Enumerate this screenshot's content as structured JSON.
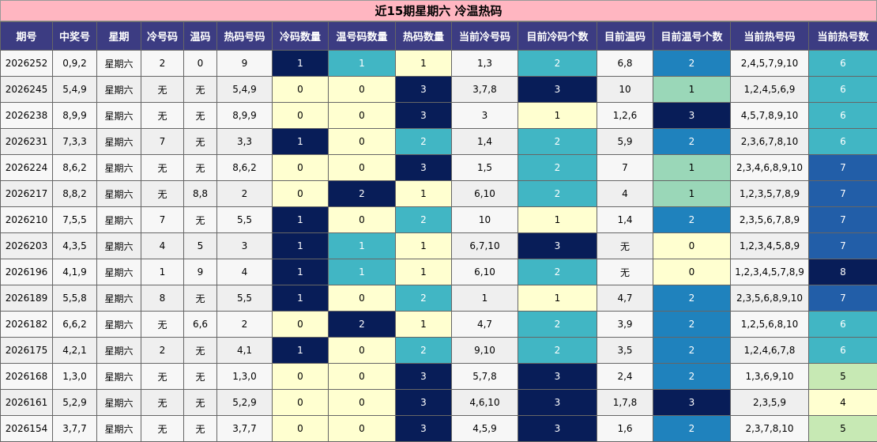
{
  "title": "近15期星期六 冷温热码",
  "headers": [
    "期号",
    "中奖号",
    "星期",
    "冷号码",
    "温码",
    "热码号码",
    "冷码数量",
    "温号码数量",
    "热码数量",
    "当前冷号码",
    "目前冷码个数",
    "目前温码",
    "目前温号个数",
    "当前热号码",
    "当前热号数"
  ],
  "palette": {
    "c-lt": "#ffffd0",
    "c-tl": "#41b6c4",
    "c-dk": "#081d58",
    "c-md": "#1f82bd",
    "c-mt": "#9ad7b8",
    "c-bl": "#225ea8",
    "c-lg": "#c7e9b4"
  },
  "rows": [
    {
      "cells": [
        "2026252",
        "0,9,2",
        "星期六",
        "2",
        "0",
        "9",
        "1",
        "1",
        "1",
        "1,3",
        "2",
        "6,8",
        "2",
        "2,4,5,7,9,10",
        "6"
      ],
      "colors": [
        "dk",
        "tl",
        "lt",
        "tl",
        "md",
        "tl"
      ]
    },
    {
      "cells": [
        "2026245",
        "5,4,9",
        "星期六",
        "无",
        "无",
        "5,4,9",
        "0",
        "0",
        "3",
        "3,7,8",
        "3",
        "10",
        "1",
        "1,2,4,5,6,9",
        "6"
      ],
      "colors": [
        "lt",
        "lt",
        "dk",
        "dk",
        "mt",
        "tl"
      ]
    },
    {
      "cells": [
        "2026238",
        "8,9,9",
        "星期六",
        "无",
        "无",
        "8,9,9",
        "0",
        "0",
        "3",
        "3",
        "1",
        "1,2,6",
        "3",
        "4,5,7,8,9,10",
        "6"
      ],
      "colors": [
        "lt",
        "lt",
        "dk",
        "lt",
        "dk",
        "tl"
      ]
    },
    {
      "cells": [
        "2026231",
        "7,3,3",
        "星期六",
        "7",
        "无",
        "3,3",
        "1",
        "0",
        "2",
        "1,4",
        "2",
        "5,9",
        "2",
        "2,3,6,7,8,10",
        "6"
      ],
      "colors": [
        "dk",
        "lt",
        "tl",
        "tl",
        "md",
        "tl"
      ]
    },
    {
      "cells": [
        "2026224",
        "8,6,2",
        "星期六",
        "无",
        "无",
        "8,6,2",
        "0",
        "0",
        "3",
        "1,5",
        "2",
        "7",
        "1",
        "2,3,4,6,8,9,10",
        "7"
      ],
      "colors": [
        "lt",
        "lt",
        "dk",
        "tl",
        "mt",
        "bl"
      ]
    },
    {
      "cells": [
        "2026217",
        "8,8,2",
        "星期六",
        "无",
        "8,8",
        "2",
        "0",
        "2",
        "1",
        "6,10",
        "2",
        "4",
        "1",
        "1,2,3,5,7,8,9",
        "7"
      ],
      "colors": [
        "lt",
        "dk",
        "lt",
        "tl",
        "mt",
        "bl"
      ]
    },
    {
      "cells": [
        "2026210",
        "7,5,5",
        "星期六",
        "7",
        "无",
        "5,5",
        "1",
        "0",
        "2",
        "10",
        "1",
        "1,4",
        "2",
        "2,3,5,6,7,8,9",
        "7"
      ],
      "colors": [
        "dk",
        "lt",
        "tl",
        "lt",
        "md",
        "bl"
      ]
    },
    {
      "cells": [
        "2026203",
        "4,3,5",
        "星期六",
        "4",
        "5",
        "3",
        "1",
        "1",
        "1",
        "6,7,10",
        "3",
        "无",
        "0",
        "1,2,3,4,5,8,9",
        "7"
      ],
      "colors": [
        "dk",
        "tl",
        "lt",
        "dk",
        "lt",
        "bl"
      ]
    },
    {
      "cells": [
        "2026196",
        "4,1,9",
        "星期六",
        "1",
        "9",
        "4",
        "1",
        "1",
        "1",
        "6,10",
        "2",
        "无",
        "0",
        "1,2,3,4,5,7,8,9",
        "8"
      ],
      "colors": [
        "dk",
        "tl",
        "lt",
        "tl",
        "lt",
        "dk"
      ]
    },
    {
      "cells": [
        "2026189",
        "5,5,8",
        "星期六",
        "8",
        "无",
        "5,5",
        "1",
        "0",
        "2",
        "1",
        "1",
        "4,7",
        "2",
        "2,3,5,6,8,9,10",
        "7"
      ],
      "colors": [
        "dk",
        "lt",
        "tl",
        "lt",
        "md",
        "bl"
      ]
    },
    {
      "cells": [
        "2026182",
        "6,6,2",
        "星期六",
        "无",
        "6,6",
        "2",
        "0",
        "2",
        "1",
        "4,7",
        "2",
        "3,9",
        "2",
        "1,2,5,6,8,10",
        "6"
      ],
      "colors": [
        "lt",
        "dk",
        "lt",
        "tl",
        "md",
        "tl"
      ]
    },
    {
      "cells": [
        "2026175",
        "4,2,1",
        "星期六",
        "2",
        "无",
        "4,1",
        "1",
        "0",
        "2",
        "9,10",
        "2",
        "3,5",
        "2",
        "1,2,4,6,7,8",
        "6"
      ],
      "colors": [
        "dk",
        "lt",
        "tl",
        "tl",
        "md",
        "tl"
      ]
    },
    {
      "cells": [
        "2026168",
        "1,3,0",
        "星期六",
        "无",
        "无",
        "1,3,0",
        "0",
        "0",
        "3",
        "5,7,8",
        "3",
        "2,4",
        "2",
        "1,3,6,9,10",
        "5"
      ],
      "colors": [
        "lt",
        "lt",
        "dk",
        "dk",
        "md",
        "lg"
      ]
    },
    {
      "cells": [
        "2026161",
        "5,2,9",
        "星期六",
        "无",
        "无",
        "5,2,9",
        "0",
        "0",
        "3",
        "4,6,10",
        "3",
        "1,7,8",
        "3",
        "2,3,5,9",
        "4"
      ],
      "colors": [
        "lt",
        "lt",
        "dk",
        "dk",
        "dk",
        "lt"
      ]
    },
    {
      "cells": [
        "2026154",
        "3,7,7",
        "星期六",
        "无",
        "无",
        "3,7,7",
        "0",
        "0",
        "3",
        "4,5,9",
        "3",
        "1,6",
        "2",
        "2,3,7,8,10",
        "5"
      ],
      "colors": [
        "lt",
        "lt",
        "dk",
        "dk",
        "md",
        "lg"
      ]
    }
  ]
}
